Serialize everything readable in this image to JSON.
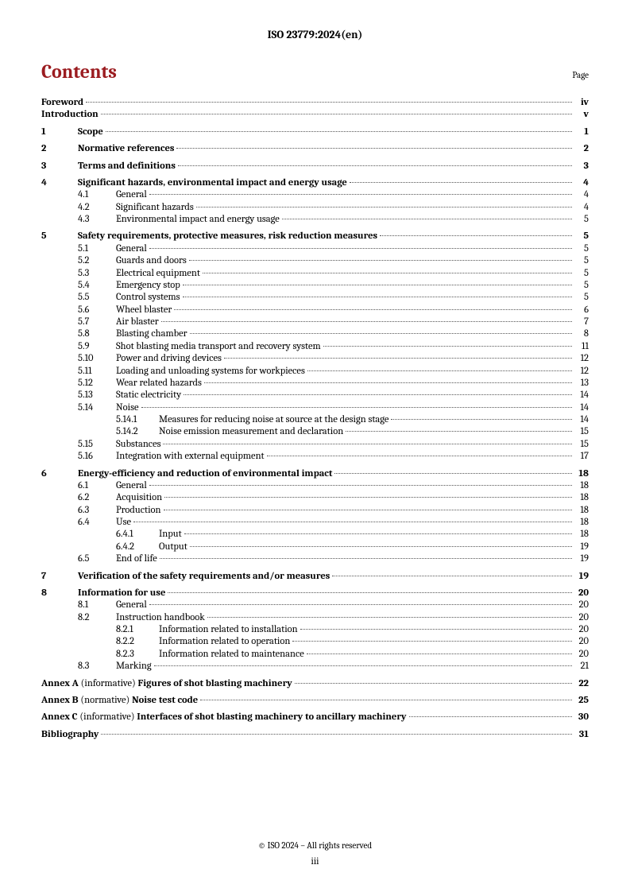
{
  "header": "ISO 23779:2024(en)",
  "contents_title": "Contents",
  "page_label": "Page",
  "footer_copyright": "© ISO 2024 – All rights reserved",
  "footer_page": "iii",
  "toc": [
    {
      "type": "top",
      "title": "Foreword",
      "page": "iv",
      "bold": true
    },
    {
      "type": "top",
      "title": "Introduction",
      "page": "v",
      "bold": true
    },
    {
      "type": "spacer"
    },
    {
      "type": "sec",
      "num": "1",
      "title": "Scope",
      "page": "1"
    },
    {
      "type": "spacer"
    },
    {
      "type": "sec",
      "num": "2",
      "title": "Normative references",
      "page": "2"
    },
    {
      "type": "spacer"
    },
    {
      "type": "sec",
      "num": "3",
      "title": "Terms and definitions",
      "page": "3"
    },
    {
      "type": "spacer"
    },
    {
      "type": "sec",
      "num": "4",
      "title": "Significant hazards, environmental impact and energy usage",
      "page": "4"
    },
    {
      "type": "sub",
      "num": "4.1",
      "title": "General",
      "page": "4"
    },
    {
      "type": "sub",
      "num": "4.2",
      "title": "Significant hazards",
      "page": "4"
    },
    {
      "type": "sub",
      "num": "4.3",
      "title": "Environmental impact and energy usage",
      "page": "5"
    },
    {
      "type": "spacer"
    },
    {
      "type": "sec",
      "num": "5",
      "title": "Safety requirements, protective measures, risk reduction measures",
      "page": "5"
    },
    {
      "type": "sub",
      "num": "5.1",
      "title": "General",
      "page": "5"
    },
    {
      "type": "sub",
      "num": "5.2",
      "title": "Guards and doors",
      "page": "5"
    },
    {
      "type": "sub",
      "num": "5.3",
      "title": "Electrical equipment",
      "page": "5"
    },
    {
      "type": "sub",
      "num": "5.4",
      "title": "Emergency stop",
      "page": "5"
    },
    {
      "type": "sub",
      "num": "5.5",
      "title": "Control systems",
      "page": "5"
    },
    {
      "type": "sub",
      "num": "5.6",
      "title": "Wheel blaster",
      "page": "6"
    },
    {
      "type": "sub",
      "num": "5.7",
      "title": "Air blaster",
      "page": "7"
    },
    {
      "type": "sub",
      "num": "5.8",
      "title": "Blasting chamber",
      "page": "8"
    },
    {
      "type": "sub",
      "num": "5.9",
      "title": "Shot blasting media transport and recovery system",
      "page": "11"
    },
    {
      "type": "sub",
      "num": "5.10",
      "title": "Power and driving devices",
      "page": "12"
    },
    {
      "type": "sub",
      "num": "5.11",
      "title": "Loading and unloading systems for workpieces",
      "page": "12"
    },
    {
      "type": "sub",
      "num": "5.12",
      "title": "Wear related hazards",
      "page": "13"
    },
    {
      "type": "sub",
      "num": "5.13",
      "title": "Static electricity",
      "page": "14"
    },
    {
      "type": "sub",
      "num": "5.14",
      "title": "Noise",
      "page": "14"
    },
    {
      "type": "subsub",
      "num": "5.14.1",
      "title": "Measures for reducing noise at source at the design stage",
      "page": "14"
    },
    {
      "type": "subsub",
      "num": "5.14.2",
      "title": "Noise emission measurement and declaration",
      "page": "15"
    },
    {
      "type": "sub",
      "num": "5.15",
      "title": "Substances",
      "page": "15"
    },
    {
      "type": "sub",
      "num": "5.16",
      "title": "Integration with external equipment",
      "page": "17"
    },
    {
      "type": "spacer"
    },
    {
      "type": "sec",
      "num": "6",
      "title": "Energy-efficiency and reduction of environmental impact",
      "page": "18"
    },
    {
      "type": "sub",
      "num": "6.1",
      "title": "General",
      "page": "18"
    },
    {
      "type": "sub",
      "num": "6.2",
      "title": "Acquisition",
      "page": "18"
    },
    {
      "type": "sub",
      "num": "6.3",
      "title": "Production",
      "page": "18"
    },
    {
      "type": "sub",
      "num": "6.4",
      "title": "Use",
      "page": "18"
    },
    {
      "type": "subsub",
      "num": "6.4.1",
      "title": "Input",
      "page": "18"
    },
    {
      "type": "subsub",
      "num": "6.4.2",
      "title": "Output",
      "page": "19"
    },
    {
      "type": "sub",
      "num": "6.5",
      "title": "End of life",
      "page": "19"
    },
    {
      "type": "spacer"
    },
    {
      "type": "sec",
      "num": "7",
      "title": "Verification of the safety requirements and/or measures",
      "page": "19"
    },
    {
      "type": "spacer"
    },
    {
      "type": "sec",
      "num": "8",
      "title": "Information for use",
      "page": "20"
    },
    {
      "type": "sub",
      "num": "8.1",
      "title": "General",
      "page": "20"
    },
    {
      "type": "sub",
      "num": "8.2",
      "title": "Instruction handbook",
      "page": "20"
    },
    {
      "type": "subsub",
      "num": "8.2.1",
      "title": "Information related to installation",
      "page": "20"
    },
    {
      "type": "subsub",
      "num": "8.2.2",
      "title": "Information related to operation",
      "page": "20"
    },
    {
      "type": "subsub",
      "num": "8.2.3",
      "title": "Information related to maintenance",
      "page": "20"
    },
    {
      "type": "sub",
      "num": "8.3",
      "title": "Marking",
      "page": "21"
    },
    {
      "type": "spacer"
    },
    {
      "type": "annex",
      "label": "Annex A",
      "paren": "(informative)",
      "title": "Figures of shot blasting machinery",
      "page": "22"
    },
    {
      "type": "spacer"
    },
    {
      "type": "annex",
      "label": "Annex B",
      "paren": "(normative)",
      "title": "Noise test code",
      "page": "25"
    },
    {
      "type": "spacer"
    },
    {
      "type": "annex",
      "label": "Annex C",
      "paren": "(informative)",
      "title": "Interfaces of shot blasting machinery to ancillary machinery",
      "page": "30"
    },
    {
      "type": "spacer"
    },
    {
      "type": "top",
      "title": "Bibliography",
      "page": "31",
      "bold": true
    }
  ]
}
